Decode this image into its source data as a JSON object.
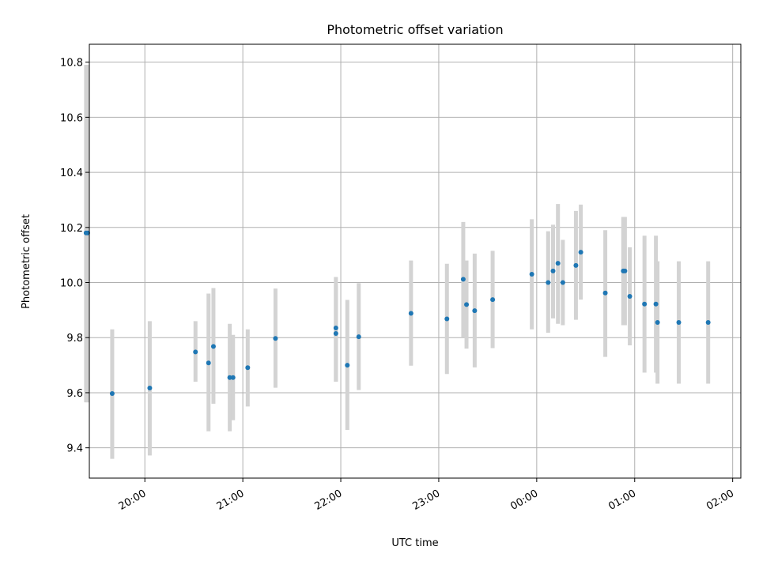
{
  "chart_data": {
    "type": "scatter",
    "title": "Photometric offset variation",
    "xlabel": "UTC time",
    "ylabel": "Photometric offset",
    "grid": true,
    "x_axis": {
      "kind": "time",
      "range": [
        "19:26",
        "02:05"
      ],
      "tick_labels": [
        "20:00",
        "21:00",
        "22:00",
        "23:00",
        "00:00",
        "01:00",
        "02:00"
      ]
    },
    "y_axis": {
      "range": [
        9.29,
        10.865
      ],
      "tick_values": [
        9.4,
        9.6,
        9.8,
        10.0,
        10.2,
        10.4,
        10.6,
        10.8
      ],
      "tick_labels": [
        "9.4",
        "9.6",
        "9.8",
        "10.0",
        "10.2",
        "10.4",
        "10.6",
        "10.8"
      ]
    },
    "colors": {
      "point": "#1f77b4",
      "errorbar": "#d3d3d3",
      "grid": "#b0b0b0"
    },
    "points": [
      {
        "t": "19:24",
        "y": 10.18,
        "err_low": 9.565,
        "err_high": 10.79
      },
      {
        "t": "19:25",
        "y": 10.18,
        "err_low": 9.565,
        "err_high": 10.79
      },
      {
        "t": "19:40",
        "y": 9.597,
        "err_low": 9.36,
        "err_high": 9.83
      },
      {
        "t": "20:03",
        "y": 9.617,
        "err_low": 9.372,
        "err_high": 9.86
      },
      {
        "t": "20:31",
        "y": 9.748,
        "err_low": 9.64,
        "err_high": 9.86
      },
      {
        "t": "20:39",
        "y": 9.708,
        "err_low": 9.46,
        "err_high": 9.96
      },
      {
        "t": "20:42",
        "y": 9.768,
        "err_low": 9.56,
        "err_high": 9.98
      },
      {
        "t": "20:52",
        "y": 9.655,
        "err_low": 9.46,
        "err_high": 9.85
      },
      {
        "t": "20:54",
        "y": 9.655,
        "err_low": 9.5,
        "err_high": 9.81
      },
      {
        "t": "21:03",
        "y": 9.691,
        "err_low": 9.55,
        "err_high": 9.83
      },
      {
        "t": "21:20",
        "y": 9.797,
        "err_low": 9.618,
        "err_high": 9.978
      },
      {
        "t": "21:57",
        "y": 9.835,
        "err_low": 9.64,
        "err_high": 10.02
      },
      {
        "t": "21:57",
        "y": 9.815,
        "err_low": 9.64,
        "err_high": 9.99
      },
      {
        "t": "22:04",
        "y": 9.7,
        "err_low": 9.465,
        "err_high": 9.937
      },
      {
        "t": "22:11",
        "y": 9.803,
        "err_low": 9.61,
        "err_high": 9.998
      },
      {
        "t": "22:43",
        "y": 9.888,
        "err_low": 9.698,
        "err_high": 10.08
      },
      {
        "t": "23:05",
        "y": 9.868,
        "err_low": 9.668,
        "err_high": 10.068
      },
      {
        "t": "23:15",
        "y": 10.012,
        "err_low": 9.8,
        "err_high": 10.22
      },
      {
        "t": "23:17",
        "y": 9.92,
        "err_low": 9.76,
        "err_high": 10.08
      },
      {
        "t": "23:22",
        "y": 9.898,
        "err_low": 9.692,
        "err_high": 10.105
      },
      {
        "t": "23:33",
        "y": 9.938,
        "err_low": 9.762,
        "err_high": 10.115
      },
      {
        "t": "23:57",
        "y": 10.03,
        "err_low": 9.83,
        "err_high": 10.23
      },
      {
        "t": "00:07",
        "y": 10.0,
        "err_low": 9.818,
        "err_high": 10.186
      },
      {
        "t": "00:10",
        "y": 10.042,
        "err_low": 9.87,
        "err_high": 10.21
      },
      {
        "t": "00:13",
        "y": 10.07,
        "err_low": 9.85,
        "err_high": 10.285
      },
      {
        "t": "00:16",
        "y": 10.0,
        "err_low": 9.845,
        "err_high": 10.155
      },
      {
        "t": "00:24",
        "y": 10.062,
        "err_low": 9.865,
        "err_high": 10.26
      },
      {
        "t": "00:27",
        "y": 10.11,
        "err_low": 9.938,
        "err_high": 10.283
      },
      {
        "t": "00:42",
        "y": 9.962,
        "err_low": 9.73,
        "err_high": 10.19
      },
      {
        "t": "00:53",
        "y": 10.042,
        "err_low": 9.845,
        "err_high": 10.238
      },
      {
        "t": "00:54",
        "y": 10.042,
        "err_low": 9.845,
        "err_high": 10.238
      },
      {
        "t": "00:57",
        "y": 9.95,
        "err_low": 9.772,
        "err_high": 10.128
      },
      {
        "t": "01:06",
        "y": 9.922,
        "err_low": 9.673,
        "err_high": 10.17
      },
      {
        "t": "01:13",
        "y": 9.922,
        "err_low": 9.673,
        "err_high": 10.17
      },
      {
        "t": "01:14",
        "y": 9.855,
        "err_low": 9.633,
        "err_high": 10.077
      },
      {
        "t": "01:27",
        "y": 9.855,
        "err_low": 9.633,
        "err_high": 10.077
      },
      {
        "t": "01:45",
        "y": 9.855,
        "err_low": 9.633,
        "err_high": 10.077
      }
    ]
  }
}
